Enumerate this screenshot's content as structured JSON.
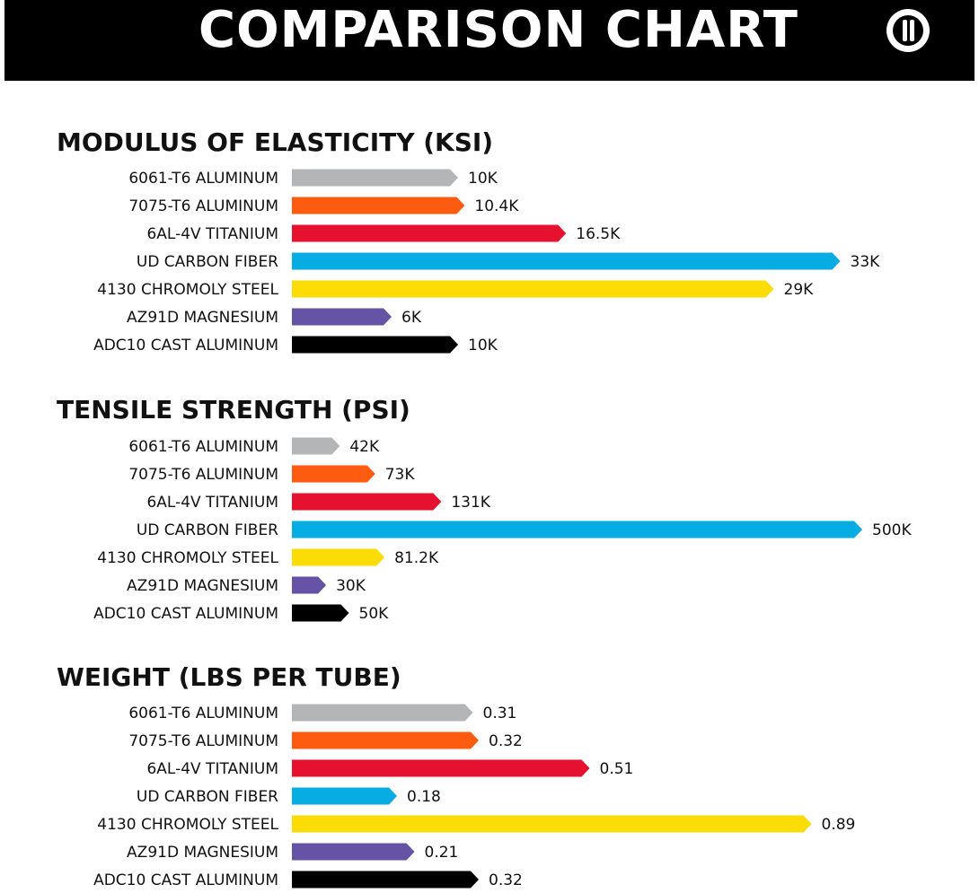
{
  "header": {
    "title": "COMPARISON CHART",
    "logo_icon": "brand-logo-icon"
  },
  "colors": {
    "6061-T6 ALUMINUM": "#b3b5b7",
    "7075-T6 ALUMINUM": "#fd5b0f",
    "6AL-4V TITANIUM": "#e5112e",
    "UD CARBON FIBER": "#07ace2",
    "4130 CHROMOLY STEEL": "#fbdc05",
    "AZ91D MAGNESIUM": "#6653a6",
    "ADC10 CAST ALUMINUM": "#000000"
  },
  "chart_data": [
    {
      "type": "bar",
      "orientation": "horizontal",
      "title": "MODULUS OF ELASTICITY (KSI)",
      "categories": [
        "6061-T6 ALUMINUM",
        "7075-T6 ALUMINUM",
        "6AL-4V TITANIUM",
        "UD CARBON FIBER",
        "4130 CHROMOLY STEEL",
        "AZ91D MAGNESIUM",
        "ADC10 CAST ALUMINUM"
      ],
      "values": [
        10000,
        10400,
        16500,
        33000,
        29000,
        6000,
        10000
      ],
      "value_labels": [
        "10K",
        "10.4K",
        "16.5K",
        "33K",
        "29K",
        "6K",
        "10K"
      ]
    },
    {
      "type": "bar",
      "orientation": "horizontal",
      "title": "TENSILE STRENGTH (PSI)",
      "categories": [
        "6061-T6 ALUMINUM",
        "7075-T6 ALUMINUM",
        "6AL-4V TITANIUM",
        "UD CARBON FIBER",
        "4130 CHROMOLY STEEL",
        "AZ91D MAGNESIUM",
        "ADC10 CAST ALUMINUM"
      ],
      "values": [
        42000,
        73000,
        131000,
        500000,
        81200,
        30000,
        50000
      ],
      "value_labels": [
        "42K",
        "73K",
        "131K",
        "500K",
        "81.2K",
        "30K",
        "50K"
      ]
    },
    {
      "type": "bar",
      "orientation": "horizontal",
      "title": "WEIGHT (LBS PER TUBE)",
      "categories": [
        "6061-T6 ALUMINUM",
        "7075-T6 ALUMINUM",
        "6AL-4V TITANIUM",
        "UD CARBON FIBER",
        "4130 CHROMOLY STEEL",
        "AZ91D MAGNESIUM",
        "ADC10 CAST ALUMINUM"
      ],
      "values": [
        0.31,
        0.32,
        0.51,
        0.18,
        0.89,
        0.21,
        0.32
      ],
      "value_labels": [
        "0.31",
        "0.32",
        "0.51",
        "0.18",
        "0.89",
        "0.21",
        "0.32"
      ]
    }
  ]
}
